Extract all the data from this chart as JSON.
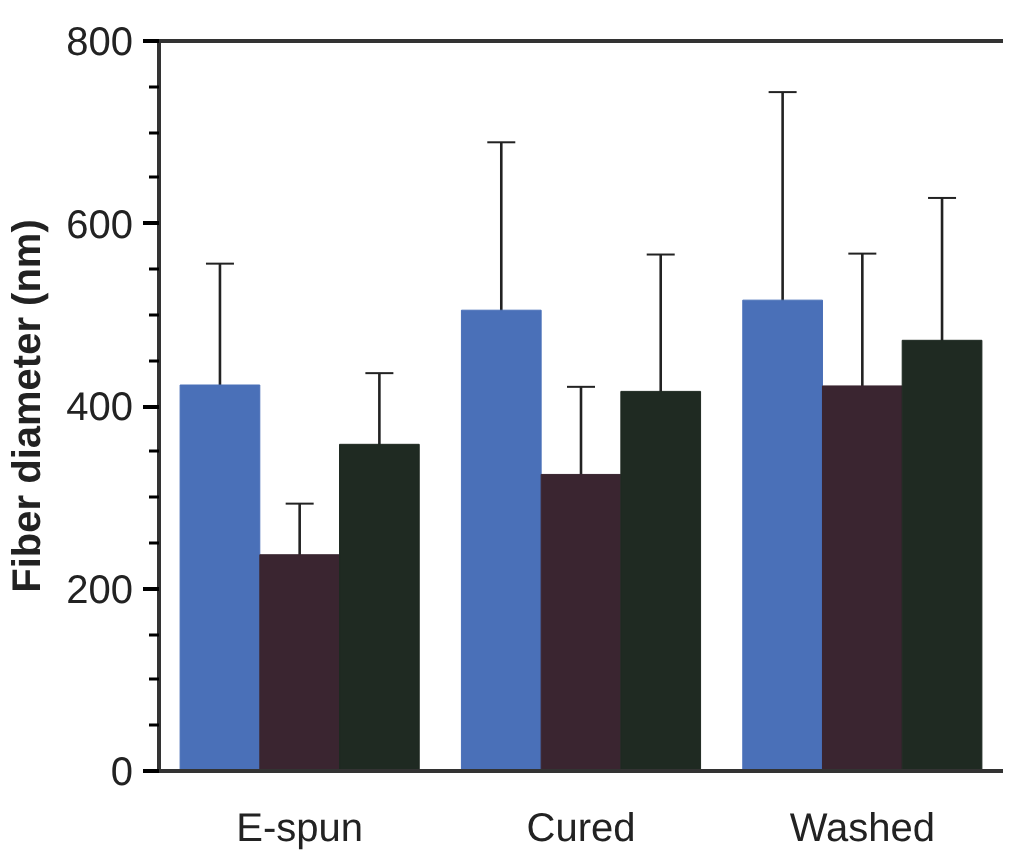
{
  "chart_data": {
    "type": "bar",
    "ylabel": "Fiber diameter (nm)",
    "categories": [
      "E-spun",
      "Cured",
      "Washed"
    ],
    "ylim": [
      0,
      800
    ],
    "yticks": [
      0,
      200,
      400,
      600,
      800
    ],
    "grid": false,
    "series": [
      {
        "color": "#4a70b8",
        "values": [
          423,
          505,
          516
        ],
        "errors": [
          133,
          184,
          228
        ]
      },
      {
        "color": "#3a2530",
        "values": [
          237,
          325,
          422
        ],
        "errors": [
          56,
          96,
          145
        ]
      },
      {
        "color": "#1f2a22",
        "values": [
          358,
          416,
          472
        ],
        "errors": [
          78,
          150,
          156
        ]
      }
    ]
  }
}
